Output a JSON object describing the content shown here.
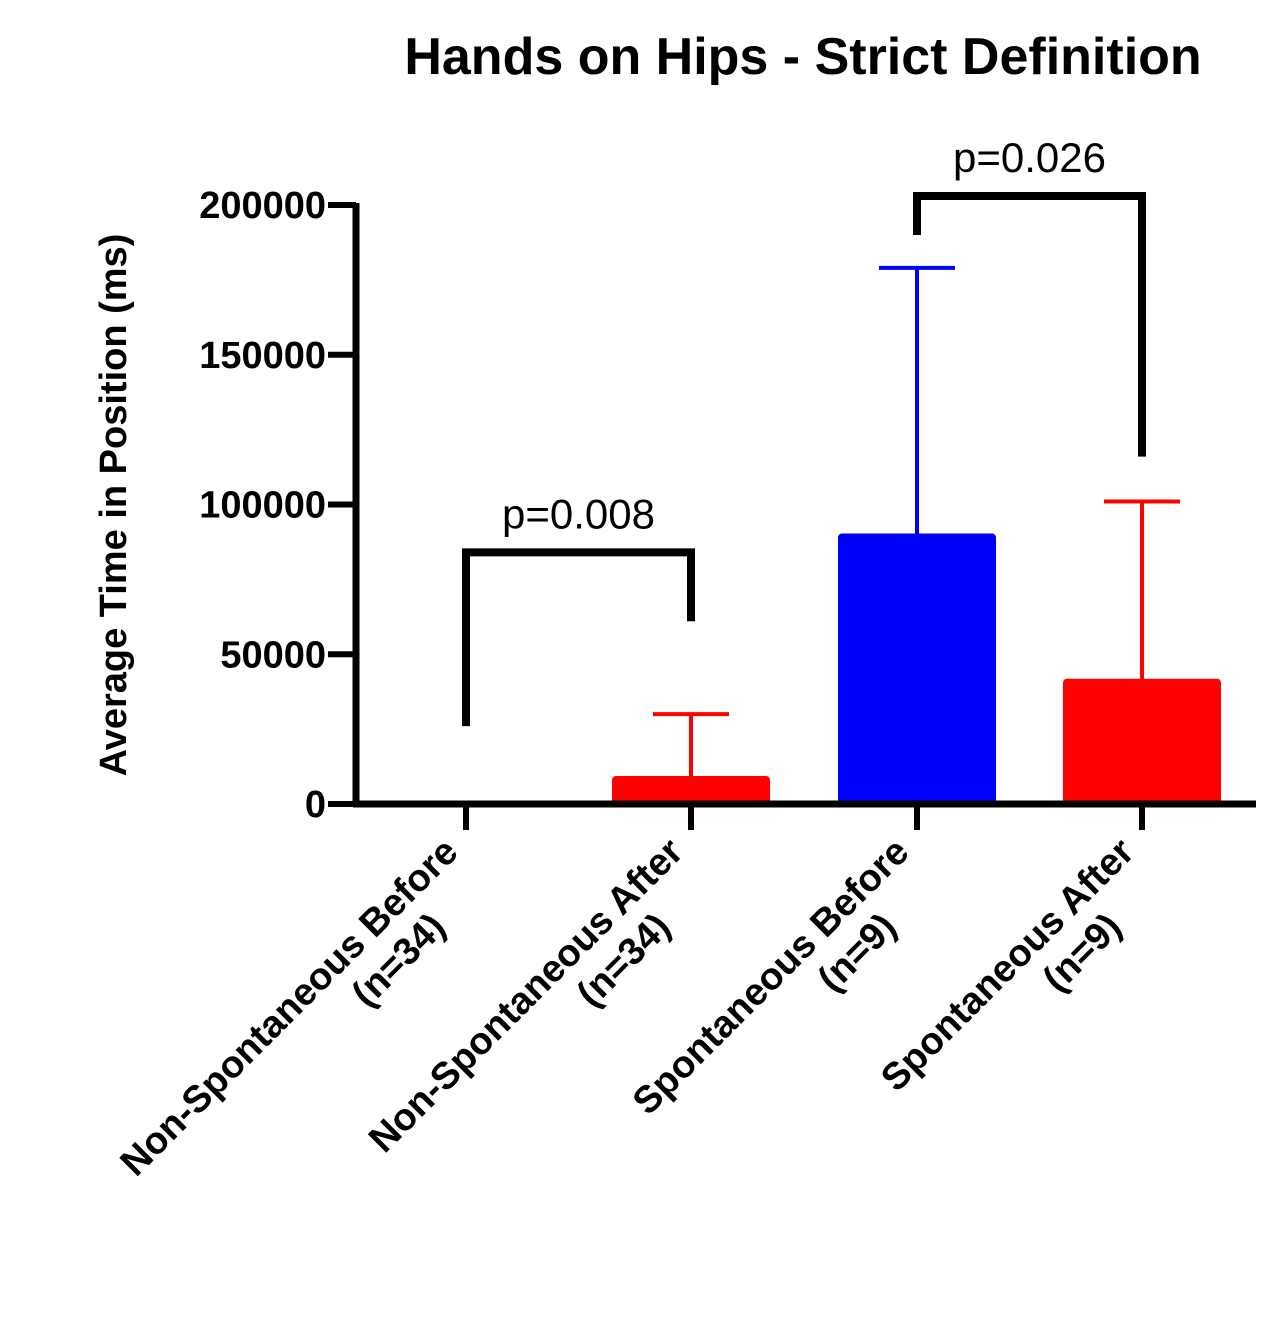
{
  "chart_data": {
    "type": "bar",
    "title": "Hands on Hips - Strict Definition",
    "ylabel": "Average Time in Position (ms)",
    "ylim": [
      0,
      200000
    ],
    "yticks": [
      "0",
      "50000",
      "100000",
      "150000",
      "200000"
    ],
    "categories": [
      {
        "line1": "Non-Spontaneous Before",
        "line2": "(n=34)"
      },
      {
        "line1": "Non-Spontaneous After",
        "line2": "(n=34)"
      },
      {
        "line1": "Spontaneous Before",
        "line2": "(n=9)"
      },
      {
        "line1": "Spontaneous After",
        "line2": "(n=9)"
      }
    ],
    "values": [
      0,
      9000,
      90000,
      41500
    ],
    "error_upper": [
      0,
      30000,
      179000,
      101000
    ],
    "colors": [
      "#ff0000",
      "#ff0000",
      "#0000ff",
      "#ff0000"
    ],
    "significance": [
      {
        "from": 0,
        "to": 1,
        "label": "p=0.008",
        "bracket_y": 84000,
        "left_end": 26000,
        "right_end": 61000
      },
      {
        "from": 2,
        "to": 3,
        "label": "p=0.026",
        "bracket_y": 203000,
        "left_end": 190000,
        "right_end": 116000
      }
    ]
  }
}
